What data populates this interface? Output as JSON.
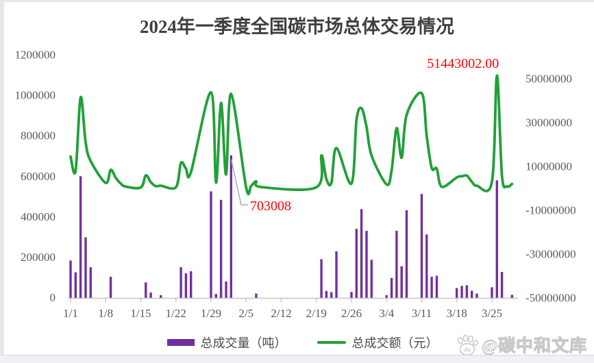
{
  "title": "2024年一季度全国碳市场总体交易情况",
  "watermark": {
    "text": "@碳中和文库",
    "icon": "baidu-paw-icon",
    "icon_text": "du"
  },
  "legend": [
    {
      "label": "总成交量（吨）",
      "color": "#7030A0",
      "marker": "bar"
    },
    {
      "label": "总成交额（元）",
      "color": "#21A038",
      "marker": "line"
    }
  ],
  "annotations": [
    {
      "text": "51443002.00",
      "color": "#FF0000",
      "series": "总成交额（元）",
      "date": "3/26",
      "value": 51443002.0
    },
    {
      "text": "703008",
      "color": "#FF0000",
      "series": "总成交量（吨）",
      "date": "2/2",
      "value": 703008
    }
  ],
  "colors": {
    "bar": "#7030A0",
    "line": "#21A038",
    "annotation": "#FF0000",
    "axis_text": "#595959",
    "axis_line": "#c6c6c6",
    "leader_line": "#ababab",
    "title_text": "#3f3f3f"
  },
  "chart_data": {
    "type": "combo-bar-line",
    "title": "2024年一季度全国碳市场总体交易情况",
    "grid": false,
    "legend_position": "bottom",
    "x_ticks": [
      {
        "label": "1/1",
        "day": 0
      },
      {
        "label": "1/8",
        "day": 7
      },
      {
        "label": "1/15",
        "day": 14
      },
      {
        "label": "1/22",
        "day": 21
      },
      {
        "label": "1/29",
        "day": 28
      },
      {
        "label": "2/5",
        "day": 35
      },
      {
        "label": "2/12",
        "day": 42
      },
      {
        "label": "2/19",
        "day": 49
      },
      {
        "label": "2/26",
        "day": 56
      },
      {
        "label": "3/4",
        "day": 63
      },
      {
        "label": "3/11",
        "day": 70
      },
      {
        "label": "3/18",
        "day": 77
      },
      {
        "label": "3/25",
        "day": 84
      }
    ],
    "left_axis": {
      "tick_labels": [
        "0",
        "200000",
        "400000",
        "600000",
        "800000",
        "1000000",
        "1200000"
      ],
      "tick_values": [
        0,
        200000,
        400000,
        600000,
        800000,
        1000000,
        1200000
      ],
      "range": [
        0,
        1200000
      ]
    },
    "right_axis": {
      "tick_labels": [
        "-50000000",
        "-30000000",
        "-10000000",
        "10000000",
        "30000000",
        "50000000"
      ],
      "tick_values": [
        -50000000,
        -30000000,
        -10000000,
        10000000,
        30000000,
        50000000
      ],
      "range": [
        -50000000,
        50000000
      ]
    },
    "dates": [
      "1/1",
      "1/2",
      "1/3",
      "1/4",
      "1/5",
      "1/6",
      "1/7",
      "1/8",
      "1/9",
      "1/10",
      "1/11",
      "1/12",
      "1/13",
      "1/14",
      "1/15",
      "1/16",
      "1/17",
      "1/18",
      "1/19",
      "1/20",
      "1/21",
      "1/22",
      "1/23",
      "1/24",
      "1/25",
      "1/26",
      "1/27",
      "1/28",
      "1/29",
      "1/30",
      "1/31",
      "2/1",
      "2/2",
      "2/3",
      "2/4",
      "2/5",
      "2/6",
      "2/7",
      "2/8",
      "2/9",
      "2/10",
      "2/11",
      "2/12",
      "2/13",
      "2/14",
      "2/15",
      "2/16",
      "2/17",
      "2/18",
      "2/19",
      "2/20",
      "2/21",
      "2/22",
      "2/23",
      "2/24",
      "2/25",
      "2/26",
      "2/27",
      "2/28",
      "2/29",
      "3/1",
      "3/2",
      "3/3",
      "3/4",
      "3/5",
      "3/6",
      "3/7",
      "3/8",
      "3/9",
      "3/10",
      "3/11",
      "3/12",
      "3/13",
      "3/14",
      "3/15",
      "3/16",
      "3/17",
      "3/18",
      "3/19",
      "3/20",
      "3/21",
      "3/22",
      "3/23",
      "3/24",
      "3/25",
      "3/26",
      "3/27",
      "3/28",
      "3/29"
    ],
    "series": [
      {
        "name": "总成交量（吨）",
        "type": "bar",
        "axis": "left",
        "color": "#7030A0",
        "values": [
          183000,
          125000,
          600000,
          298000,
          150000,
          0,
          0,
          0,
          103000,
          0,
          0,
          0,
          0,
          0,
          0,
          75000,
          25000,
          0,
          12000,
          0,
          0,
          0,
          150000,
          120000,
          130000,
          0,
          0,
          0,
          525000,
          18000,
          483000,
          80000,
          703008,
          0,
          0,
          0,
          0,
          20000,
          0,
          0,
          0,
          0,
          0,
          0,
          0,
          0,
          0,
          0,
          0,
          0,
          190000,
          33000,
          27000,
          228000,
          0,
          0,
          28000,
          340000,
          437000,
          330000,
          187000,
          0,
          0,
          12000,
          97000,
          330000,
          155000,
          432000,
          0,
          0,
          512000,
          312000,
          103000,
          108000,
          0,
          0,
          0,
          47000,
          58000,
          61000,
          34000,
          20000,
          0,
          0,
          51000,
          580000,
          127000,
          0,
          14000
        ]
      },
      {
        "name": "总成交额（元）",
        "type": "line",
        "axis": "right",
        "color": "#21A038",
        "values": [
          14500000,
          8000000,
          41500000,
          21000000,
          12500000,
          null,
          null,
          2500000,
          8400000,
          4800000,
          2200000,
          800000,
          null,
          null,
          400000,
          5900000,
          2800000,
          1000000,
          1200000,
          null,
          null,
          500000,
          11600000,
          9000000,
          7400000,
          null,
          null,
          null,
          43800000,
          2600000,
          39000000,
          6300000,
          43100000,
          null,
          null,
          400000,
          1200000,
          3200000,
          600000,
          null,
          null,
          null,
          null,
          null,
          null,
          null,
          null,
          null,
          null,
          500000,
          15000000,
          4200000,
          2500000,
          18400000,
          null,
          null,
          2200000,
          31000000,
          36600000,
          28000000,
          15000000,
          null,
          null,
          1800000,
          8200000,
          27500000,
          14000000,
          33500000,
          null,
          null,
          43400000,
          24000000,
          9300000,
          9000000,
          700000,
          null,
          null,
          5000000,
          5500000,
          5800000,
          3000000,
          1200000,
          null,
          null,
          3000000,
          51443002,
          6000000,
          900000,
          2000000
        ]
      }
    ]
  }
}
